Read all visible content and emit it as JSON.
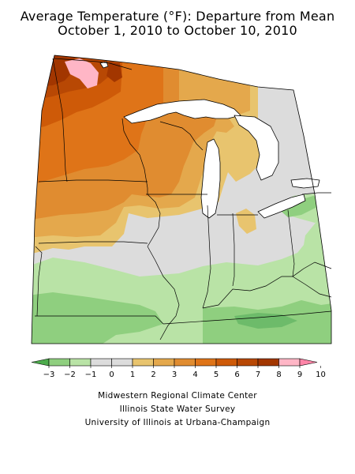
{
  "title": {
    "line1": "Average Temperature (°F): Departure from Mean",
    "line2": "October 1, 2010 to October 10, 2010"
  },
  "legend": {
    "ticks": [
      "−3",
      "−2",
      "−1",
      "0",
      "1",
      "2",
      "3",
      "4",
      "5",
      "6",
      "7",
      "8",
      "9",
      "10"
    ],
    "colors": [
      "#8fcf7f",
      "#b9e3a6",
      "#dcdcdc",
      "#dcdcdc",
      "#e8c46e",
      "#e4a84c",
      "#e08c30",
      "#df7418",
      "#ce5a08",
      "#b84804",
      "#a23600",
      "#ffb6c6"
    ],
    "low_arrow_color": "#4cab4c",
    "high_arrow_color": "#ff85a8"
  },
  "credits": {
    "line1": "Midwestern Regional Climate Center",
    "line2": "Illinois State Water Survey",
    "line3": "University of Illinois at Urbana-Champaign"
  },
  "map": {
    "region": "Midwest US",
    "colors": {
      "plus_10": "#ffb6c6",
      "plus_9": "#a23600",
      "plus_8": "#b84804",
      "plus_7": "#ce5a08",
      "plus_6": "#df7418",
      "plus_5": "#e08c30",
      "plus_4": "#e4a84c",
      "plus_3": "#e8c46e",
      "near_zero": "#dcdcdc",
      "minus_1": "#b9e3a6",
      "minus_2": "#8fcf7f",
      "minus_3": "#6dbb6a",
      "water": "#ffffff"
    }
  }
}
